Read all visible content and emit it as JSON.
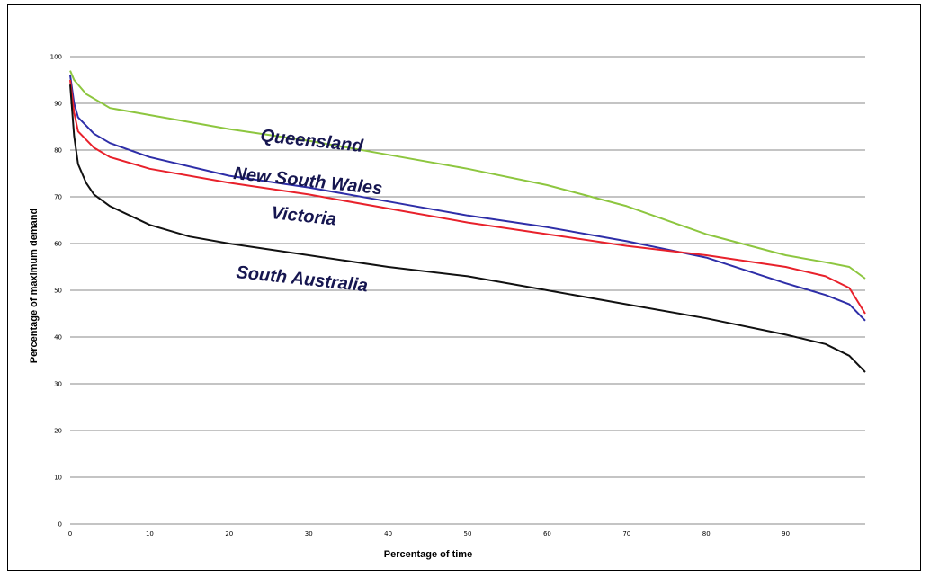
{
  "chart_data": {
    "type": "line",
    "title": "",
    "xlabel": "Percentage of time",
    "ylabel": "Percentage of maximum demand",
    "xlim": [
      0,
      100
    ],
    "ylim": [
      0,
      100
    ],
    "x_ticks": [
      "0",
      "10",
      "20",
      "30",
      "40",
      "50",
      "60",
      "70",
      "80",
      "90"
    ],
    "y_ticks": [
      "0",
      "10",
      "20",
      "30",
      "40",
      "50",
      "60",
      "70",
      "80",
      "90",
      "100"
    ],
    "grid": true,
    "series": [
      {
        "name": "Queensland",
        "color": "#8dc63f",
        "points": [
          [
            0,
            97
          ],
          [
            0.5,
            95
          ],
          [
            2,
            92
          ],
          [
            5,
            89
          ],
          [
            10,
            87.5
          ],
          [
            20,
            84.5
          ],
          [
            30,
            82
          ],
          [
            40,
            79
          ],
          [
            50,
            76
          ],
          [
            60,
            72.5
          ],
          [
            70,
            68
          ],
          [
            80,
            62
          ],
          [
            90,
            57.5
          ],
          [
            95,
            56
          ],
          [
            98,
            55
          ],
          [
            100,
            52.5
          ]
        ]
      },
      {
        "name": "New South Wales",
        "color": "#2e2ea8",
        "points": [
          [
            0,
            96
          ],
          [
            0.5,
            90
          ],
          [
            1,
            87
          ],
          [
            3,
            83.5
          ],
          [
            5,
            81.5
          ],
          [
            10,
            78.5
          ],
          [
            20,
            74.5
          ],
          [
            30,
            72
          ],
          [
            40,
            69
          ],
          [
            50,
            66
          ],
          [
            60,
            63.5
          ],
          [
            70,
            60.5
          ],
          [
            80,
            57
          ],
          [
            90,
            51.5
          ],
          [
            95,
            49
          ],
          [
            98,
            47
          ],
          [
            100,
            43.5
          ]
        ]
      },
      {
        "name": "Victoria",
        "color": "#e8212b",
        "points": [
          [
            0,
            95
          ],
          [
            0.5,
            88
          ],
          [
            1,
            84
          ],
          [
            3,
            80.5
          ],
          [
            5,
            78.5
          ],
          [
            10,
            76
          ],
          [
            20,
            73
          ],
          [
            30,
            70.5
          ],
          [
            40,
            67.5
          ],
          [
            50,
            64.5
          ],
          [
            60,
            62
          ],
          [
            70,
            59.5
          ],
          [
            80,
            57.5
          ],
          [
            90,
            55
          ],
          [
            95,
            53
          ],
          [
            98,
            50.5
          ],
          [
            100,
            45
          ]
        ]
      },
      {
        "name": "South Australia",
        "color": "#111111",
        "points": [
          [
            0,
            94
          ],
          [
            0.5,
            83
          ],
          [
            1,
            77
          ],
          [
            2,
            73
          ],
          [
            3,
            70.5
          ],
          [
            5,
            68
          ],
          [
            10,
            64
          ],
          [
            15,
            61.5
          ],
          [
            20,
            60
          ],
          [
            30,
            57.5
          ],
          [
            40,
            55
          ],
          [
            50,
            53
          ],
          [
            60,
            50
          ],
          [
            70,
            47
          ],
          [
            80,
            44
          ],
          [
            90,
            40.5
          ],
          [
            95,
            38.5
          ],
          [
            98,
            36
          ],
          [
            100,
            32.5
          ]
        ]
      }
    ]
  }
}
